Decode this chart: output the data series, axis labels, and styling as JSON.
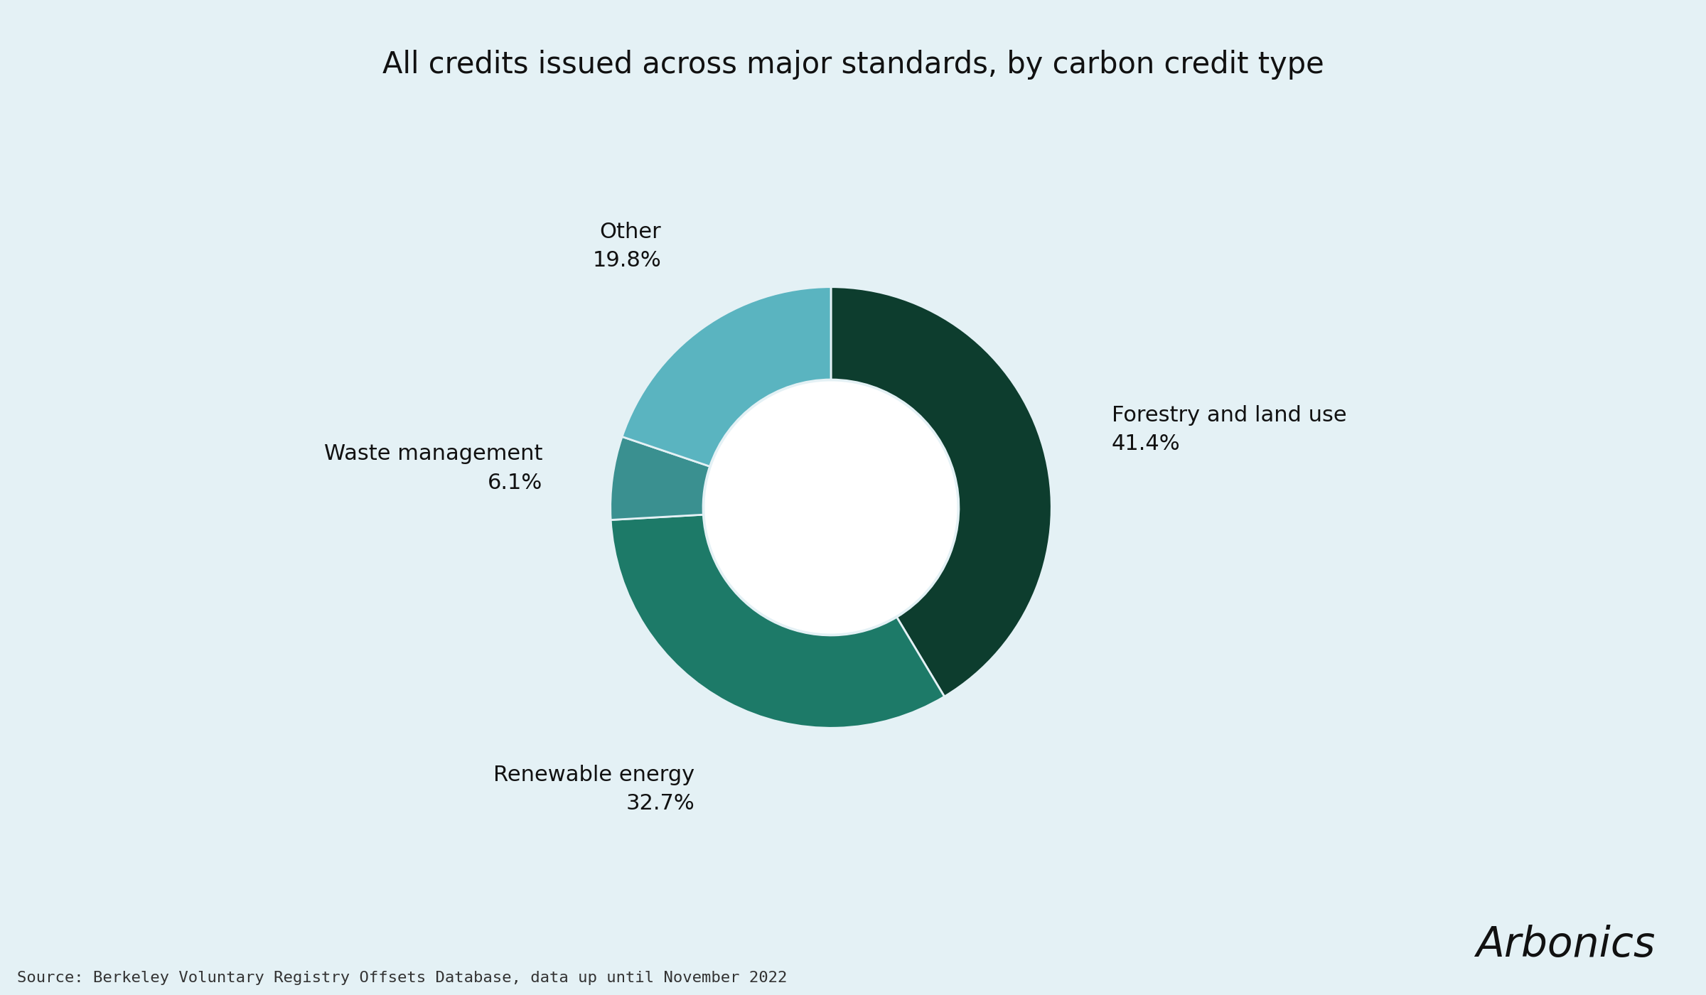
{
  "title": "All credits issued across major standards, by carbon credit type",
  "source_text": "Source: Berkeley Voluntary Registry Offsets Database, data up until November 2022",
  "brand_text": "Arbonics",
  "background_color": "#e4f1f5",
  "segments": [
    {
      "label": "Forestry and land use",
      "pct_label": "41.4%",
      "value": 41.4,
      "color": "#0d3d2e"
    },
    {
      "label": "Renewable energy",
      "pct_label": "32.7%",
      "value": 32.7,
      "color": "#1d7a68"
    },
    {
      "label": "Waste management",
      "pct_label": "6.1%",
      "value": 6.1,
      "color": "#3a9090"
    },
    {
      "label": "Other",
      "pct_label": "19.8%",
      "value": 19.8,
      "color": "#5ab4c0"
    }
  ],
  "title_fontsize": 30,
  "label_fontsize": 22,
  "source_fontsize": 16,
  "brand_fontsize": 42,
  "donut_width": 0.42,
  "startangle": 90
}
